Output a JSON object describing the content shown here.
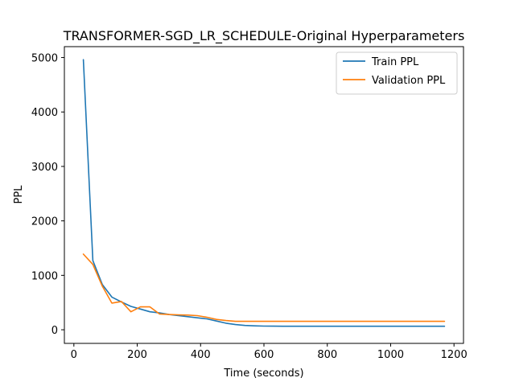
{
  "chart_data": {
    "type": "line",
    "title": "TRANSFORMER-SGD_LR_SCHEDULE-Original Hyperparameters",
    "xlabel": "Time (seconds)",
    "ylabel": "PPL",
    "xlim": [
      -30,
      1230
    ],
    "ylim": [
      -250,
      5200
    ],
    "xticks": [
      0,
      200,
      400,
      600,
      800,
      1000,
      1200
    ],
    "yticks": [
      0,
      1000,
      2000,
      3000,
      4000,
      5000
    ],
    "grid": false,
    "legend_position": "upper right",
    "series": [
      {
        "name": "Train PPL",
        "color": "#1f77b4",
        "x": [
          30,
          60,
          90,
          120,
          150,
          180,
          210,
          240,
          270,
          300,
          330,
          360,
          390,
          420,
          450,
          480,
          510,
          540,
          570,
          600,
          630,
          660,
          690,
          720,
          750,
          780,
          810,
          840,
          870,
          900,
          930,
          960,
          990,
          1020,
          1050,
          1080,
          1110,
          1140,
          1170
        ],
        "y": [
          4960,
          1270,
          830,
          600,
          510,
          430,
          380,
          330,
          310,
          280,
          260,
          240,
          220,
          200,
          160,
          120,
          95,
          80,
          72,
          68,
          66,
          65,
          65,
          65,
          65,
          65,
          65,
          65,
          65,
          65,
          65,
          65,
          65,
          65,
          65,
          65,
          65,
          65,
          65
        ]
      },
      {
        "name": "Validation PPL",
        "color": "#ff7f0e",
        "x": [
          30,
          60,
          90,
          120,
          150,
          180,
          210,
          240,
          270,
          300,
          330,
          360,
          390,
          420,
          450,
          480,
          510,
          540,
          570,
          600,
          630,
          660,
          690,
          720,
          750,
          780,
          810,
          840,
          870,
          900,
          930,
          960,
          990,
          1020,
          1050,
          1080,
          1110,
          1140,
          1170
        ],
        "y": [
          1390,
          1200,
          800,
          490,
          520,
          330,
          420,
          420,
          290,
          280,
          275,
          270,
          260,
          230,
          190,
          170,
          155,
          155,
          155,
          155,
          155,
          155,
          155,
          155,
          155,
          155,
          155,
          155,
          155,
          155,
          155,
          155,
          155,
          155,
          155,
          155,
          155,
          155,
          155
        ]
      }
    ]
  }
}
